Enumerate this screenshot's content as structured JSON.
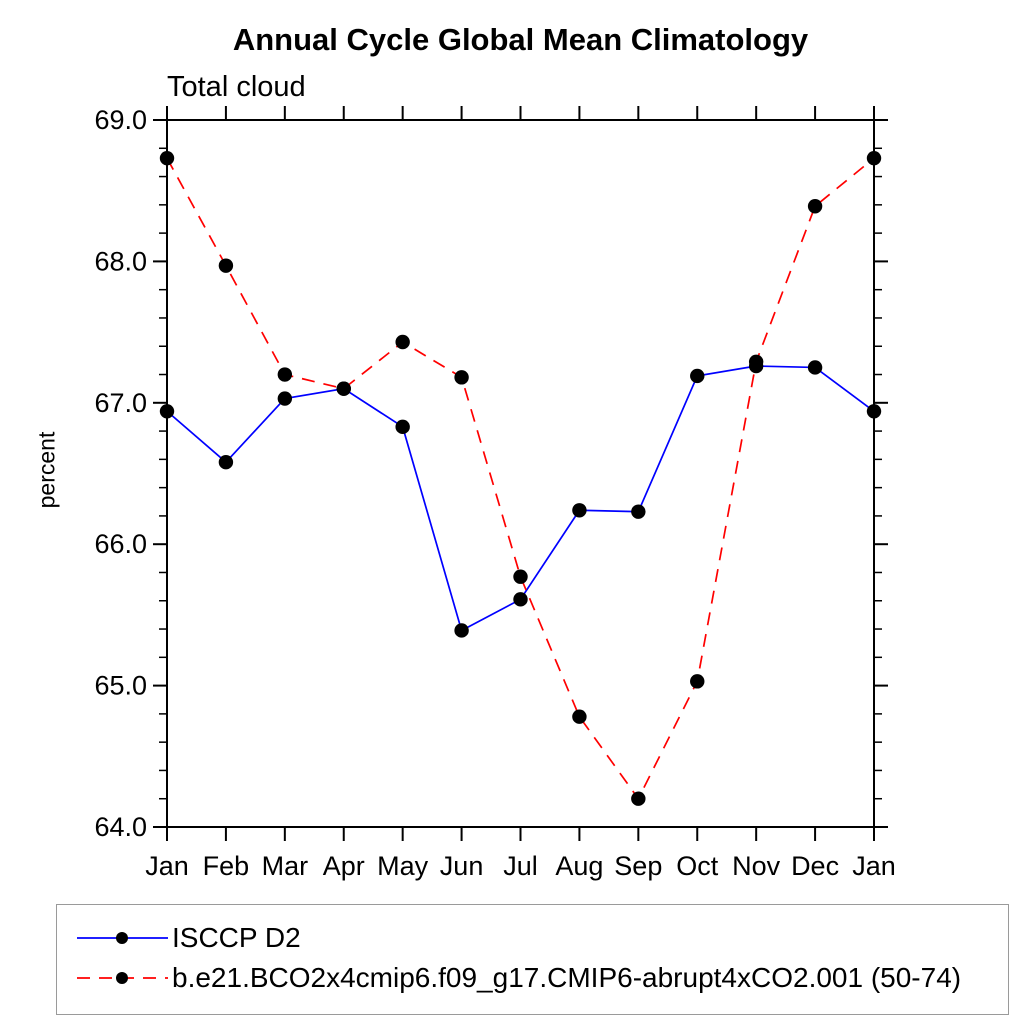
{
  "title": "Annual Cycle Global Mean Climatology",
  "subtitle": "Total cloud",
  "ylabel": "percent",
  "colors": {
    "series1": "#0000ff",
    "series2": "#ff0000",
    "marker": "#000000",
    "axis": "#000000",
    "legend_border": "#9a9a9a"
  },
  "chart_data": {
    "type": "line",
    "title": "Annual Cycle Global Mean Climatology",
    "subtitle": "Total cloud",
    "xlabel": "",
    "ylabel": "percent",
    "categories": [
      "Jan",
      "Feb",
      "Mar",
      "Apr",
      "May",
      "Jun",
      "Jul",
      "Aug",
      "Sep",
      "Oct",
      "Nov",
      "Dec",
      "Jan"
    ],
    "series": [
      {
        "name": "ISCCP D2",
        "color": "#0000ff",
        "line_style": "solid",
        "marker": "filled-circle",
        "marker_color": "#000000",
        "values": [
          66.94,
          66.58,
          67.03,
          67.1,
          66.83,
          65.39,
          65.61,
          66.24,
          66.23,
          67.19,
          67.26,
          67.25,
          66.94
        ]
      },
      {
        "name": "b.e21.BCO2x4cmip6.f09_g17.CMIP6-abrupt4xCO2.001 (50-74)",
        "color": "#ff0000",
        "line_style": "dashed",
        "marker": "filled-circle",
        "marker_color": "#000000",
        "values": [
          68.73,
          67.97,
          67.2,
          67.1,
          67.43,
          67.18,
          65.77,
          64.78,
          64.2,
          65.03,
          67.29,
          68.39,
          68.73
        ]
      }
    ],
    "ylim": [
      64.0,
      69.0
    ],
    "ytick_interval": 1.0,
    "yminor_interval": 0.2,
    "ytick_labels": [
      "64.0",
      "65.0",
      "66.0",
      "67.0",
      "68.0",
      "69.0"
    ],
    "grid": false,
    "legend_position": "bottom"
  }
}
